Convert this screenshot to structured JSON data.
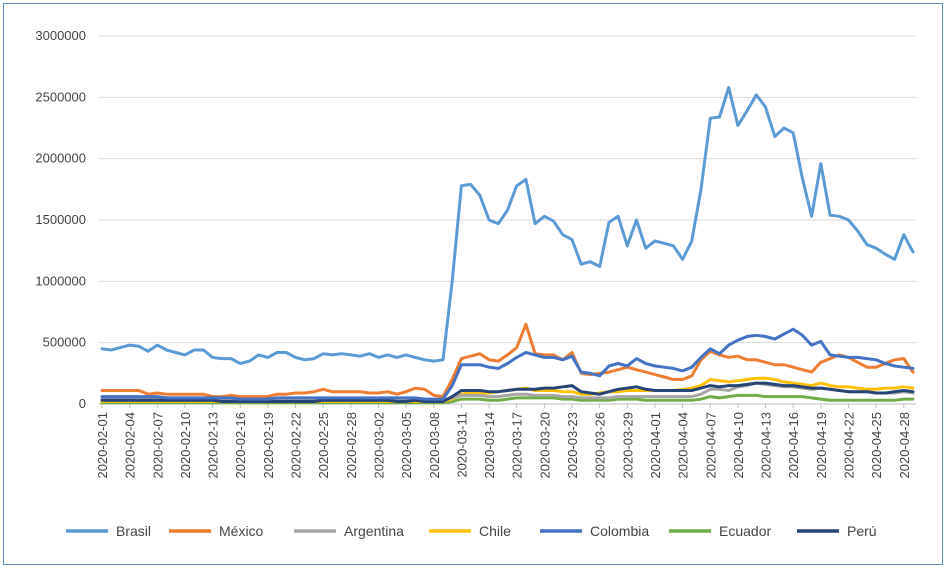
{
  "chart_data": {
    "type": "line",
    "title": "",
    "xlabel": "",
    "ylabel": "",
    "ylim": [
      0,
      3000000
    ],
    "yticks": [
      "3000000",
      "2500000",
      "2000000",
      "1500000",
      "1000000",
      "500000",
      "0"
    ],
    "x_tick_labels": [
      "2020-02-01",
      "2020-02-04",
      "2020-02-07",
      "2020-02-10",
      "2020-02-13",
      "2020-02-16",
      "2020-02-19",
      "2020-02-22",
      "2020-02-25",
      "2020-02-28",
      "2020-03-02",
      "2020-03-05",
      "2020-03-08",
      "2020-03-11",
      "2020-03-14",
      "2020-03-17",
      "2020-03-20",
      "2020-03-23",
      "2020-03-26",
      "2020-03-29",
      "2020-04-01",
      "2020-04-04",
      "2020-04-07",
      "2020-04-10",
      "2020-04-13",
      "2020-04-16",
      "2020-04-19",
      "2020-04-22",
      "2020-04-25",
      "2020-04-28"
    ],
    "x_start": "2020-02-01",
    "x_end": "2020-04-29",
    "grid": true,
    "legend_position": "bottom",
    "series": [
      {
        "name": "Brasil",
        "color": "#5b9bd5",
        "values": [
          450000,
          440000,
          460000,
          480000,
          470000,
          430000,
          480000,
          440000,
          420000,
          400000,
          440000,
          440000,
          380000,
          370000,
          370000,
          330000,
          350000,
          400000,
          380000,
          420000,
          420000,
          380000,
          360000,
          370000,
          410000,
          400000,
          410000,
          400000,
          390000,
          410000,
          380000,
          400000,
          380000,
          400000,
          380000,
          360000,
          350000,
          360000,
          1000000,
          1780000,
          1790000,
          1700000,
          1500000,
          1470000,
          1580000,
          1780000,
          1830000,
          1470000,
          1530000,
          1490000,
          1380000,
          1340000,
          1140000,
          1160000,
          1120000,
          1480000,
          1530000,
          1290000,
          1500000,
          1270000,
          1330000,
          1310000,
          1290000,
          1180000,
          1330000,
          1750000,
          2330000,
          2340000,
          2580000,
          2270000,
          2390000,
          2520000,
          2420000,
          2180000,
          2250000,
          2210000,
          1840000,
          1530000,
          1960000,
          1540000,
          1530000,
          1500000,
          1410000,
          1300000,
          1270000,
          1220000,
          1180000,
          1380000,
          1240000
        ]
      },
      {
        "name": "México",
        "color": "#ed7d31",
        "values": [
          110000,
          110000,
          110000,
          110000,
          110000,
          80000,
          90000,
          80000,
          80000,
          80000,
          80000,
          80000,
          60000,
          60000,
          70000,
          60000,
          60000,
          60000,
          60000,
          80000,
          80000,
          90000,
          90000,
          100000,
          120000,
          100000,
          100000,
          100000,
          100000,
          90000,
          90000,
          100000,
          80000,
          100000,
          130000,
          120000,
          70000,
          60000,
          200000,
          370000,
          390000,
          410000,
          360000,
          350000,
          400000,
          460000,
          650000,
          410000,
          400000,
          400000,
          360000,
          420000,
          250000,
          240000,
          250000,
          260000,
          280000,
          300000,
          280000,
          260000,
          240000,
          220000,
          200000,
          200000,
          230000,
          360000,
          430000,
          400000,
          380000,
          390000,
          360000,
          360000,
          340000,
          320000,
          320000,
          300000,
          280000,
          260000,
          340000,
          370000,
          400000,
          380000,
          340000,
          300000,
          300000,
          330000,
          360000,
          370000,
          260000
        ]
      },
      {
        "name": "Argentina",
        "color": "#a5a5a5",
        "values": [
          40000,
          40000,
          40000,
          40000,
          40000,
          40000,
          40000,
          40000,
          40000,
          40000,
          40000,
          40000,
          30000,
          30000,
          30000,
          30000,
          30000,
          30000,
          30000,
          30000,
          30000,
          30000,
          30000,
          30000,
          30000,
          30000,
          30000,
          30000,
          30000,
          30000,
          30000,
          30000,
          30000,
          30000,
          30000,
          30000,
          30000,
          30000,
          50000,
          70000,
          70000,
          70000,
          60000,
          60000,
          70000,
          80000,
          80000,
          70000,
          70000,
          70000,
          60000,
          60000,
          50000,
          50000,
          50000,
          50000,
          60000,
          60000,
          60000,
          60000,
          60000,
          60000,
          60000,
          60000,
          60000,
          80000,
          120000,
          120000,
          110000,
          140000,
          150000,
          170000,
          160000,
          150000,
          140000,
          140000,
          130000,
          120000,
          130000,
          120000,
          110000,
          100000,
          100000,
          100000,
          90000,
          90000,
          90000,
          100000,
          90000
        ]
      },
      {
        "name": "Chile",
        "color": "#ffc000",
        "values": [
          20000,
          20000,
          20000,
          20000,
          20000,
          20000,
          20000,
          20000,
          20000,
          20000,
          20000,
          20000,
          20000,
          20000,
          20000,
          20000,
          20000,
          20000,
          20000,
          20000,
          20000,
          20000,
          20000,
          20000,
          20000,
          20000,
          20000,
          20000,
          20000,
          20000,
          20000,
          20000,
          20000,
          20000,
          20000,
          20000,
          20000,
          20000,
          40000,
          80000,
          90000,
          90000,
          90000,
          100000,
          110000,
          120000,
          130000,
          110000,
          110000,
          110000,
          100000,
          100000,
          80000,
          80000,
          90000,
          100000,
          100000,
          110000,
          110000,
          110000,
          110000,
          110000,
          110000,
          120000,
          130000,
          150000,
          200000,
          190000,
          180000,
          190000,
          200000,
          210000,
          210000,
          200000,
          180000,
          170000,
          160000,
          150000,
          170000,
          150000,
          140000,
          140000,
          130000,
          120000,
          120000,
          130000,
          130000,
          140000,
          130000
        ]
      },
      {
        "name": "Colombia",
        "color": "#4472c4",
        "values": [
          60000,
          60000,
          60000,
          60000,
          60000,
          60000,
          60000,
          50000,
          50000,
          50000,
          50000,
          50000,
          50000,
          50000,
          50000,
          40000,
          40000,
          40000,
          40000,
          50000,
          50000,
          50000,
          50000,
          50000,
          50000,
          50000,
          50000,
          50000,
          50000,
          50000,
          50000,
          50000,
          50000,
          50000,
          50000,
          40000,
          40000,
          40000,
          150000,
          320000,
          320000,
          320000,
          300000,
          290000,
          330000,
          380000,
          420000,
          400000,
          380000,
          380000,
          360000,
          390000,
          260000,
          250000,
          230000,
          310000,
          330000,
          310000,
          370000,
          330000,
          310000,
          300000,
          290000,
          270000,
          300000,
          380000,
          450000,
          410000,
          480000,
          520000,
          550000,
          560000,
          550000,
          530000,
          570000,
          610000,
          560000,
          480000,
          510000,
          400000,
          390000,
          380000,
          380000,
          370000,
          360000,
          330000,
          310000,
          300000,
          290000
        ]
      },
      {
        "name": "Ecuador",
        "color": "#70ad47",
        "values": [
          10000,
          10000,
          10000,
          10000,
          10000,
          10000,
          10000,
          10000,
          10000,
          10000,
          10000,
          10000,
          10000,
          10000,
          10000,
          10000,
          10000,
          10000,
          10000,
          10000,
          10000,
          10000,
          10000,
          10000,
          10000,
          10000,
          10000,
          10000,
          10000,
          10000,
          10000,
          10000,
          10000,
          10000,
          10000,
          10000,
          10000,
          10000,
          20000,
          40000,
          40000,
          40000,
          30000,
          30000,
          40000,
          50000,
          50000,
          50000,
          50000,
          50000,
          40000,
          40000,
          30000,
          30000,
          30000,
          30000,
          40000,
          40000,
          40000,
          30000,
          30000,
          30000,
          30000,
          30000,
          30000,
          40000,
          60000,
          50000,
          60000,
          70000,
          70000,
          70000,
          60000,
          60000,
          60000,
          60000,
          60000,
          50000,
          40000,
          30000,
          30000,
          30000,
          30000,
          30000,
          30000,
          30000,
          30000,
          40000,
          40000
        ]
      },
      {
        "name": "Perú",
        "color": "#264478",
        "values": [
          30000,
          30000,
          30000,
          30000,
          30000,
          30000,
          30000,
          30000,
          30000,
          30000,
          30000,
          30000,
          30000,
          20000,
          20000,
          20000,
          20000,
          20000,
          20000,
          20000,
          20000,
          20000,
          20000,
          20000,
          30000,
          30000,
          30000,
          30000,
          30000,
          30000,
          30000,
          30000,
          20000,
          20000,
          30000,
          20000,
          20000,
          20000,
          60000,
          110000,
          110000,
          110000,
          100000,
          100000,
          110000,
          120000,
          120000,
          120000,
          130000,
          130000,
          140000,
          150000,
          100000,
          90000,
          80000,
          100000,
          120000,
          130000,
          140000,
          120000,
          110000,
          110000,
          110000,
          110000,
          110000,
          130000,
          150000,
          140000,
          150000,
          150000,
          160000,
          170000,
          170000,
          160000,
          150000,
          150000,
          140000,
          130000,
          130000,
          120000,
          110000,
          100000,
          100000,
          100000,
          90000,
          90000,
          100000,
          110000,
          100000
        ]
      }
    ]
  }
}
